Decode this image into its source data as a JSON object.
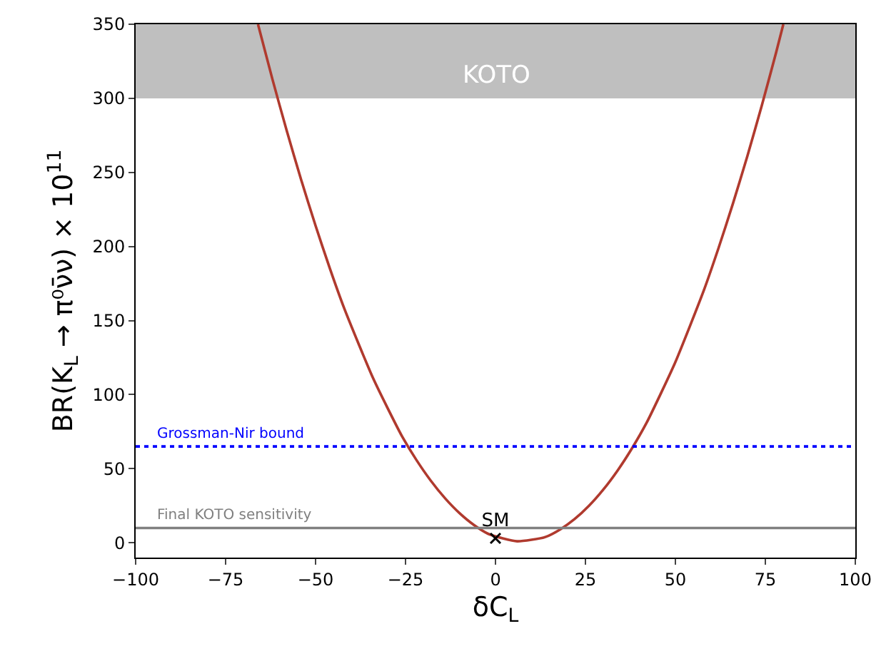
{
  "chart_data": {
    "type": "line",
    "xlabel": "δC$_{L}$",
    "ylabel": "BR(K$_{L}$ → π⁰ν̄ν) × 10$^{11}$",
    "series": [
      {
        "type": "line",
        "color": "#b03a2e",
        "x": [
          -66,
          -62,
          -58,
          -54,
          -50,
          -46,
          -42,
          -38,
          -34,
          -30,
          -26,
          -22,
          -18,
          -14,
          -10,
          -6,
          -2,
          2,
          6,
          10,
          14,
          18,
          22,
          26,
          30,
          34,
          38,
          42,
          46,
          50,
          54,
          58,
          62,
          66,
          70,
          74,
          78,
          80
        ],
        "values": [
          350,
          313,
          278,
          245,
          214,
          185,
          158,
          134,
          111,
          91,
          72,
          56,
          42,
          30,
          20,
          12,
          6,
          3,
          1,
          2,
          4,
          9,
          16,
          25,
          36,
          49,
          64,
          81,
          101,
          122,
          146,
          171,
          199,
          229,
          261,
          295,
          331,
          350
        ]
      },
      {
        "type": "scatter",
        "name": "SM",
        "color": "#000000",
        "marker": "cross",
        "x": [
          0
        ],
        "values": [
          3
        ]
      }
    ],
    "xlim": [
      -100,
      100
    ],
    "xticks": [
      -100,
      -75,
      -50,
      -25,
      0,
      25,
      50,
      75,
      100
    ],
    "ylim": [
      -10,
      350
    ],
    "yticks": [
      0,
      50,
      100,
      150,
      200,
      250,
      300,
      350
    ],
    "ref_lines": [
      {
        "axis": "y",
        "value": 65,
        "label": "Grossman-Nir bound",
        "color": "#0000ff",
        "line_style": "dotted"
      },
      {
        "axis": "y",
        "value": 10,
        "label": "Final KOTO sensitivity",
        "color": "#808080",
        "line_style": "solid"
      }
    ],
    "bands": [
      {
        "axis": "y",
        "from": 300,
        "to": 350,
        "label": "KOTO",
        "color": "#bfbfbf"
      }
    ],
    "grid": false,
    "marker": "none",
    "line_style": "solid"
  }
}
